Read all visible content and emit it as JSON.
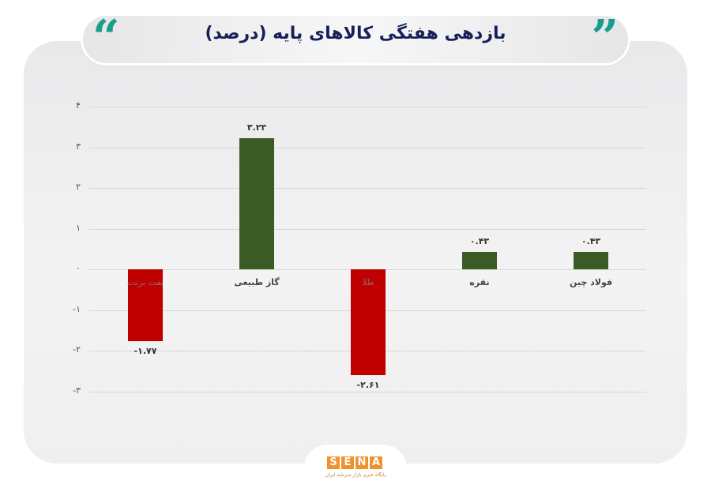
{
  "header": {
    "title": "بازدهی هفتگی کالاهای پایه (درصد)",
    "quote_open": "“",
    "quote_close": "”",
    "accent_color": "#1a9e8c",
    "title_color": "#16205a"
  },
  "footer": {
    "logo_letters": [
      "S",
      "E",
      "N",
      "A"
    ],
    "logo_subtitle": "پایگاه خبری بازار سرمایه ایران",
    "logo_color": "#f0922e"
  },
  "chart_data": {
    "type": "bar",
    "title": "بازدهی هفتگی کالاهای پایه (درصد)",
    "xlabel": "",
    "ylabel": "",
    "ylim": [
      -3,
      4
    ],
    "yticks": [
      4,
      3,
      2,
      1,
      0,
      -1,
      -2,
      -3
    ],
    "ytick_labels": [
      "۴",
      "۳",
      "۲",
      "۱",
      "۰",
      "-۱",
      "-۲",
      "-۳"
    ],
    "grid": true,
    "legend": null,
    "categories": [
      "نفت برنت",
      "گاز طبیعی",
      "طلا",
      "نقره",
      "فولاد چین"
    ],
    "values": [
      -1.77,
      3.23,
      -2.61,
      0.43,
      0.43
    ],
    "value_labels": [
      "-۱.۷۷",
      "۳.۲۳",
      "-۲.۶۱",
      "۰.۴۳",
      "۰.۴۳"
    ],
    "colors": {
      "positive": "#3c5a23",
      "negative": "#c00000"
    }
  }
}
